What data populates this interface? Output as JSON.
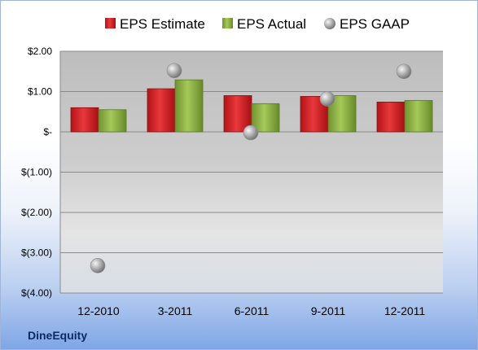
{
  "company_label": "DineEquity",
  "chart_data": {
    "type": "bar",
    "categories": [
      "12-2010",
      "3-2011",
      "6-2011",
      "9-2011",
      "12-2011"
    ],
    "series": [
      {
        "name": "EPS Estimate",
        "kind": "bar",
        "values": [
          0.6,
          1.07,
          0.9,
          0.88,
          0.74
        ],
        "color": "#d9262a"
      },
      {
        "name": "EPS Actual",
        "kind": "bar",
        "values": [
          0.55,
          1.29,
          0.7,
          0.9,
          0.78
        ],
        "color": "#8fb445"
      },
      {
        "name": "EPS GAAP",
        "kind": "scatter",
        "values": [
          -3.32,
          1.52,
          -0.02,
          0.82,
          1.5
        ],
        "color": "#a8a8a8"
      }
    ],
    "y_ticks": [
      2,
      1,
      0,
      -1,
      -2,
      -3,
      -4
    ],
    "y_tick_labels": [
      "$2.00",
      "$1.00",
      "$-",
      "$(1.00)",
      "$(2.00)",
      "$(3.00)",
      "$(4.00)"
    ],
    "ylim": [
      -4,
      2
    ],
    "grid": true,
    "legend": "top"
  }
}
